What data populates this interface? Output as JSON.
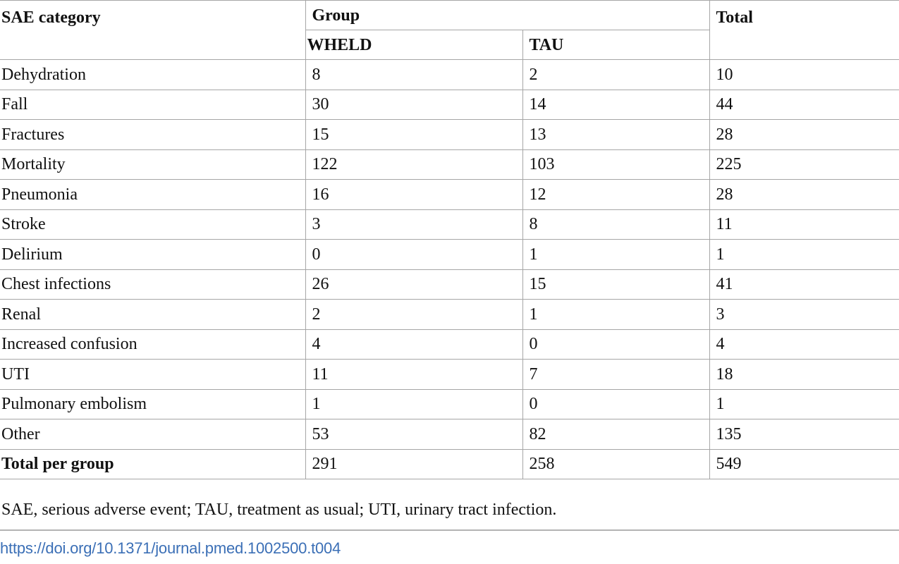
{
  "table": {
    "header": {
      "category_label": "SAE category",
      "group_label": "Group",
      "total_label": "Total",
      "wheld_label": "WHELD",
      "tau_label": "TAU"
    },
    "rows": [
      {
        "category": "Dehydration",
        "wheld": "8",
        "tau": "2",
        "total": "10"
      },
      {
        "category": "Fall",
        "wheld": "30",
        "tau": "14",
        "total": "44"
      },
      {
        "category": "Fractures",
        "wheld": "15",
        "tau": "13",
        "total": "28"
      },
      {
        "category": "Mortality",
        "wheld": "122",
        "tau": "103",
        "total": "225"
      },
      {
        "category": "Pneumonia",
        "wheld": "16",
        "tau": "12",
        "total": "28"
      },
      {
        "category": "Stroke",
        "wheld": "3",
        "tau": "8",
        "total": "11"
      },
      {
        "category": "Delirium",
        "wheld": "0",
        "tau": "1",
        "total": "1"
      },
      {
        "category": "Chest infections",
        "wheld": "26",
        "tau": "15",
        "total": "41"
      },
      {
        "category": "Renal",
        "wheld": "2",
        "tau": "1",
        "total": "3"
      },
      {
        "category": "Increased confusion",
        "wheld": "4",
        "tau": "0",
        "total": "4"
      },
      {
        "category": "UTI",
        "wheld": "11",
        "tau": "7",
        "total": "18"
      },
      {
        "category": "Pulmonary embolism",
        "wheld": "1",
        "tau": "0",
        "total": "1"
      },
      {
        "category": "Other",
        "wheld": "53",
        "tau": "82",
        "total": "135"
      }
    ],
    "total_row": {
      "category": "Total per group",
      "wheld": "291",
      "tau": "258",
      "total": "549"
    }
  },
  "footnote": "SAE, serious adverse event; TAU, treatment as usual; UTI, urinary tract infection.",
  "doi_link": "https://doi.org/10.1371/journal.pmed.1002500.t004",
  "colors": {
    "border": "#a6a6a6",
    "link": "#3b6fb6",
    "text": "#111111"
  }
}
